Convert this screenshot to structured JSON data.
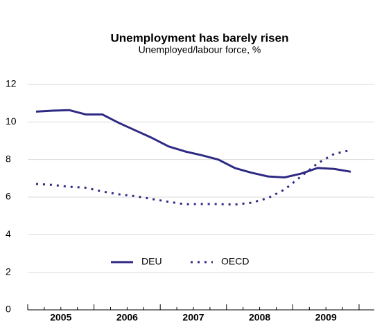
{
  "chart_data": {
    "type": "line",
    "title": "Unemployment has barely risen",
    "subtitle": "Unemployed/labour force, %",
    "x": [
      2005.125,
      2005.375,
      2005.625,
      2005.875,
      2006.125,
      2006.375,
      2006.625,
      2006.875,
      2007.125,
      2007.375,
      2007.625,
      2007.875,
      2008.125,
      2008.375,
      2008.625,
      2008.875,
      2009.125,
      2009.375,
      2009.625,
      2009.875
    ],
    "series": [
      {
        "name": "DEU",
        "color": "#2e2a84",
        "dash": false,
        "values": [
          10.55,
          10.6,
          10.63,
          10.4,
          10.4,
          9.95,
          9.55,
          9.15,
          8.7,
          8.43,
          8.23,
          8.0,
          7.55,
          7.3,
          7.1,
          7.05,
          7.25,
          7.55,
          7.5,
          7.35
        ]
      },
      {
        "name": "OECD",
        "color": "#2e2a84",
        "dash": true,
        "values": [
          6.7,
          6.65,
          6.55,
          6.5,
          6.3,
          6.15,
          6.05,
          5.9,
          5.75,
          5.62,
          5.63,
          5.63,
          5.6,
          5.7,
          5.95,
          6.4,
          7.1,
          7.8,
          8.3,
          8.5
        ]
      }
    ],
    "xlim": [
      2005,
      2010
    ],
    "xticks": [
      {
        "value": 2005.5,
        "label": "2005"
      },
      {
        "value": 2006.5,
        "label": "2006"
      },
      {
        "value": 2007.5,
        "label": "2007"
      },
      {
        "value": 2008.5,
        "label": "2008"
      },
      {
        "value": 2009.5,
        "label": "2009"
      }
    ],
    "ylim": [
      0,
      12
    ],
    "yticks": [
      0,
      2,
      4,
      6,
      8,
      10,
      12
    ],
    "grid": true
  }
}
